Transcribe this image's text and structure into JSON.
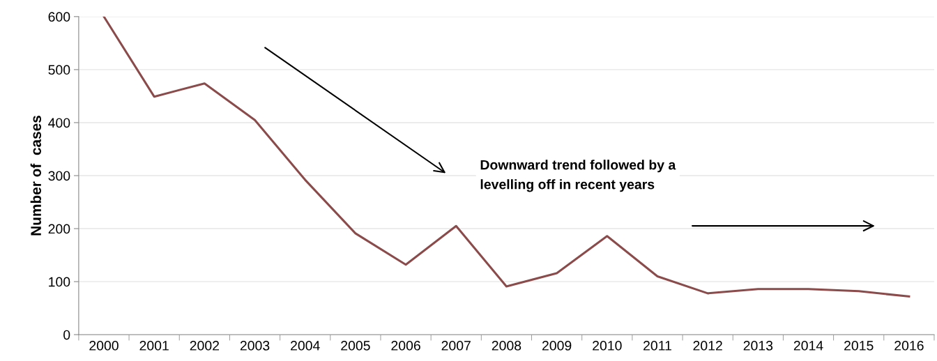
{
  "chart_data": {
    "type": "line",
    "ylabel": "Number of  cases",
    "categories": [
      "2000",
      "2001",
      "2002",
      "2003",
      "2004",
      "2005",
      "2006",
      "2007",
      "2008",
      "2009",
      "2010",
      "2011",
      "2012",
      "2013",
      "2014",
      "2015",
      "2016"
    ],
    "series": [
      {
        "color": "#8c4b4b",
        "values": [
          600,
          449,
          474,
          405,
          292,
          191,
          132,
          205,
          91,
          116,
          186,
          110,
          78,
          86,
          86,
          82,
          72
        ]
      }
    ],
    "ylim": [
      0,
      600
    ],
    "yticks": [
      0,
      100,
      200,
      300,
      400,
      500,
      600
    ],
    "grid": "y",
    "legend": false,
    "marker": "none",
    "line_style": "solid",
    "annotations": [
      "Downward trend followed by a\nlevelling off in recent years"
    ]
  }
}
